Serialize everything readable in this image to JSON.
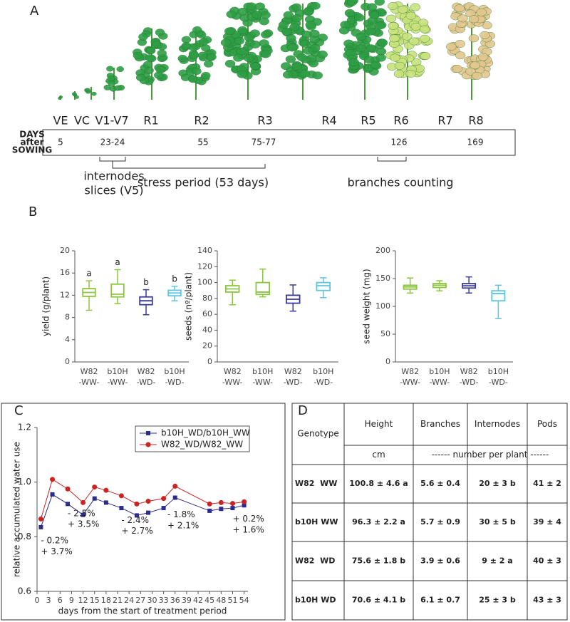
{
  "panel_labels": [
    "A",
    "B",
    "C",
    "D"
  ],
  "growth_stages": {
    "stages": [
      "VE",
      "VC",
      "V1-V7",
      "R1",
      "R2",
      "R3",
      "R4",
      "R5",
      "R6",
      "R7",
      "R8"
    ],
    "days_label": [
      "DAYS",
      "after",
      "SOWING"
    ],
    "days": [
      5,
      "23-24",
      55,
      "75-77",
      126,
      169
    ],
    "internodes_label": [
      "internodes",
      "slices (V5)"
    ],
    "stress_label": "stress period (53 days)",
    "branches_label": "branches counting"
  },
  "chart_data": [
    {
      "type": "box",
      "ylabel": "yield (g/plant)",
      "categories": [
        [
          "W82",
          "-WW-"
        ],
        [
          "b10H",
          "-WW-"
        ],
        [
          "W82",
          "-WD-"
        ],
        [
          "b10H",
          "-WD-"
        ]
      ],
      "colors": [
        "#8cc63e",
        "#8cc63e",
        "#3a3a9a",
        "#5cc6e4"
      ],
      "boxes": [
        {
          "min": 9.3,
          "q1": 11.8,
          "median": 12.5,
          "q3": 13.2,
          "max": 14.6
        },
        {
          "min": 10.5,
          "q1": 11.7,
          "median": 12.2,
          "q3": 14.0,
          "max": 16.6
        },
        {
          "min": 8.5,
          "q1": 10.3,
          "median": 11.0,
          "q3": 11.7,
          "max": 13.0
        },
        {
          "min": 11.0,
          "q1": 11.9,
          "median": 12.4,
          "q3": 12.9,
          "max": 13.6
        }
      ],
      "annotations": [
        "a",
        "a",
        "b",
        "b"
      ],
      "ylim": [
        0,
        20
      ],
      "yticks": [
        0,
        4,
        8,
        12,
        16,
        20
      ]
    },
    {
      "type": "box",
      "ylabel": "seeds (nº/plant)",
      "categories": [
        [
          "W82",
          "-WW-"
        ],
        [
          "b10H",
          "-WW-"
        ],
        [
          "W82",
          "-WD-"
        ],
        [
          "b10H",
          "-WD-"
        ]
      ],
      "colors": [
        "#8cc63e",
        "#8cc63e",
        "#3a3a9a",
        "#5cc6e4"
      ],
      "boxes": [
        {
          "min": 72,
          "q1": 88,
          "median": 92,
          "q3": 96,
          "max": 103
        },
        {
          "min": 82,
          "q1": 85,
          "median": 88,
          "q3": 100,
          "max": 117
        },
        {
          "min": 64,
          "q1": 74,
          "median": 79,
          "q3": 84,
          "max": 97
        },
        {
          "min": 81,
          "q1": 90,
          "median": 96,
          "q3": 100,
          "max": 106
        }
      ],
      "ylim": [
        0,
        140
      ],
      "yticks": [
        0,
        20,
        40,
        60,
        80,
        100,
        120,
        140
      ]
    },
    {
      "type": "box",
      "ylabel": "seed weight (mg)",
      "categories": [
        [
          "W82",
          "-WW-"
        ],
        [
          "b10H",
          "-WW-"
        ],
        [
          "W82",
          "-WD-"
        ],
        [
          "b10H",
          "-WD-"
        ]
      ],
      "colors": [
        "#8cc63e",
        "#8cc63e",
        "#3a3a9a",
        "#5cc6e4"
      ],
      "boxes": [
        {
          "min": 124,
          "q1": 131,
          "median": 135,
          "q3": 138,
          "max": 151
        },
        {
          "min": 128,
          "q1": 134,
          "median": 138,
          "q3": 141,
          "max": 146
        },
        {
          "min": 124,
          "q1": 133,
          "median": 137,
          "q3": 141,
          "max": 153
        },
        {
          "min": 78,
          "q1": 110,
          "median": 123,
          "q3": 128,
          "max": 138
        }
      ],
      "ylim": [
        0,
        200
      ],
      "yticks": [
        0,
        50,
        100,
        150,
        200
      ]
    },
    {
      "type": "line",
      "xlabel": "days from the start of treatment period",
      "ylabel": "relative accumulated water use",
      "x": [
        1,
        4,
        8,
        12,
        15,
        18,
        22,
        26,
        29,
        33,
        36,
        45,
        48,
        51,
        54
      ],
      "series": [
        {
          "name": "b10H_WD/b10H_WW",
          "color": "#2c2c8a",
          "marker": "square",
          "values": [
            0.835,
            0.955,
            0.92,
            0.88,
            0.94,
            0.925,
            0.905,
            0.878,
            0.888,
            0.905,
            0.943,
            0.895,
            0.902,
            0.905,
            0.915
          ]
        },
        {
          "name": "W82_WD/W82_WW",
          "color": "#cc2222",
          "marker": "circle",
          "values": [
            0.865,
            1.01,
            0.975,
            0.925,
            0.982,
            0.97,
            0.95,
            0.92,
            0.93,
            0.94,
            0.985,
            0.92,
            0.925,
            0.922,
            0.928
          ]
        }
      ],
      "annotations": [
        "- 0.2%",
        "+ 3.7%",
        "- 2.5%",
        "+ 3.5%",
        "- 2.4%",
        "+ 2.7%",
        "- 1.8%",
        "+ 2.1%",
        "+ 0.2%",
        "+ 1.6%"
      ],
      "xlim": [
        0,
        55
      ],
      "xticks": [
        0,
        3,
        6,
        9,
        12,
        15,
        18,
        21,
        24,
        27,
        30,
        33,
        36,
        39,
        42,
        45,
        48,
        51,
        54
      ],
      "ylim": [
        0.6,
        1.2
      ],
      "yticks": [
        0.6,
        0.8,
        {
          "value": 1.0,
          "label": "1.0"
        },
        1.2
      ],
      "legend": "upper right"
    }
  ],
  "table": {
    "header": [
      "Genotype",
      "Height",
      "Branches",
      "Internodes",
      "Pods"
    ],
    "units": [
      "cm",
      "------ number per plant ------"
    ],
    "rows": [
      [
        "W82  WW",
        "100.8 ± 4.6 a",
        "5.6 ± 0.4",
        "20 ± 3 b",
        "41 ± 2"
      ],
      [
        "b10H WW",
        "96.3 ± 2.2 a",
        "5.7 ± 0.9",
        "30 ± 5 b",
        "39 ± 4"
      ],
      [
        "W82  WD",
        "75.6 ± 1.8 b",
        "3.9 ± 0.6",
        "9 ± 2 a",
        "40 ± 3"
      ],
      [
        "b10H WD",
        "70.6 ± 4.1 b",
        "6.1 ± 0.7",
        "25 ± 3 b",
        "43 ± 3"
      ]
    ]
  }
}
